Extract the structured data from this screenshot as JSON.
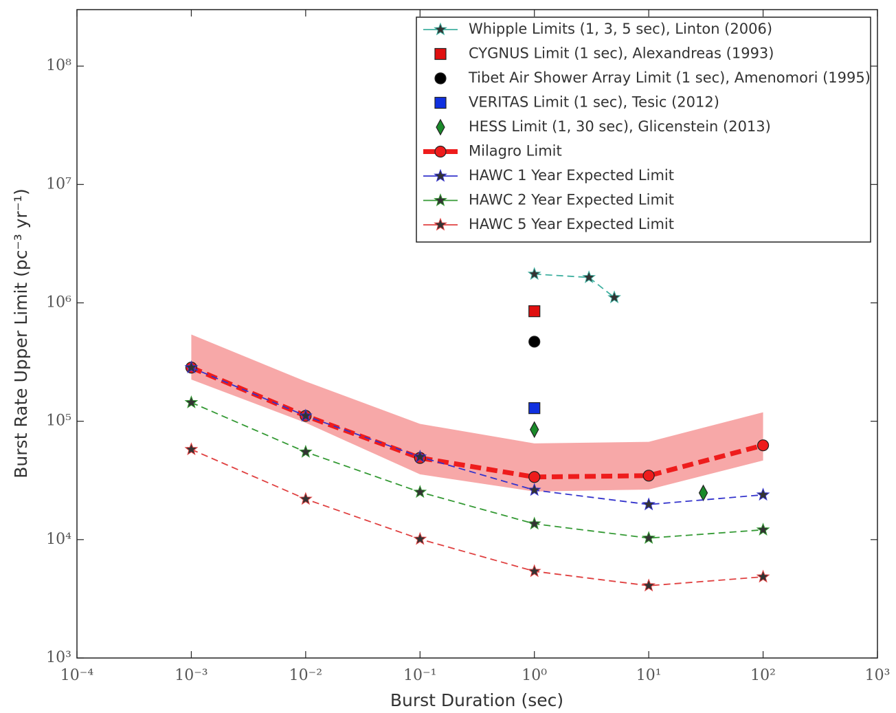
{
  "chart_data": {
    "type": "line",
    "xlabel": "Burst Duration (sec)",
    "ylabel": "Burst Rate Upper Limit (pc⁻³ yr⁻¹)",
    "xscale": "log",
    "yscale": "log",
    "xlim": [
      0.0001,
      1000
    ],
    "ylim": [
      1000,
      300000000
    ],
    "xticks": [
      {
        "value": 0.0001,
        "label": "10⁻⁴"
      },
      {
        "value": 0.001,
        "label": "10⁻³"
      },
      {
        "value": 0.01,
        "label": "10⁻²"
      },
      {
        "value": 0.1,
        "label": "10⁻¹"
      },
      {
        "value": 1,
        "label": "10⁰"
      },
      {
        "value": 10,
        "label": "10¹"
      },
      {
        "value": 100,
        "label": "10²"
      },
      {
        "value": 1000,
        "label": "10³"
      }
    ],
    "yticks": [
      {
        "value": 1000,
        "label": "10³"
      },
      {
        "value": 10000,
        "label": "10⁴"
      },
      {
        "value": 100000,
        "label": "10⁵"
      },
      {
        "value": 1000000,
        "label": "10⁶"
      },
      {
        "value": 10000000,
        "label": "10⁷"
      },
      {
        "value": 100000000,
        "label": "10⁸"
      }
    ],
    "legend": "upper right",
    "band": {
      "color": "#f7a8a8",
      "x": [
        0.001,
        0.01,
        0.1,
        1,
        10,
        100
      ],
      "upper": [
        540000,
        217000,
        95000,
        65000,
        67000,
        119000
      ],
      "lower": [
        225000,
        97000,
        35600,
        25500,
        26500,
        46600
      ]
    },
    "series": [
      {
        "name": "Whipple Limits (1, 3, 5 sec), Linton (2006)",
        "color": "#40b0a0",
        "marker": "star",
        "line": "dashed",
        "x": [
          1,
          3,
          5
        ],
        "values": [
          1750000,
          1640000,
          1110000
        ]
      },
      {
        "name": "CYGNUS Limit (1 sec), Alexandreas (1993)",
        "color": "#e01010",
        "marker": "square",
        "line": "none",
        "x": [
          1
        ],
        "values": [
          850000
        ]
      },
      {
        "name": "Tibet Air Shower Array Limit (1 sec), Amenomori (1995)",
        "color": "#000000",
        "marker": "circle",
        "line": "none",
        "x": [
          1
        ],
        "values": [
          470000
        ]
      },
      {
        "name": "VERITAS Limit (1 sec), Tesic (2012)",
        "color": "#1030e0",
        "marker": "square",
        "line": "none",
        "x": [
          1
        ],
        "values": [
          129000
        ]
      },
      {
        "name": "HESS Limit (1, 30 sec), Glicenstein (2013)",
        "color": "#1a8a2a",
        "marker": "diamond",
        "line": "none",
        "x": [
          1,
          30
        ],
        "values": [
          85000,
          24800
        ]
      },
      {
        "name": "Milagro Limit",
        "color": "#ee1c1c",
        "marker": "circle",
        "line": "thick",
        "x": [
          0.001,
          0.01,
          0.1,
          1,
          10,
          100
        ],
        "values": [
          284000,
          111000,
          49000,
          33800,
          34700,
          62600
        ]
      },
      {
        "name": "HAWC 1 Year Expected Limit",
        "color": "#3333cc",
        "marker": "star",
        "line": "dashed",
        "x": [
          0.001,
          0.01,
          0.1,
          1,
          10,
          100
        ],
        "values": [
          284000,
          111000,
          50000,
          26200,
          19800,
          23900
        ]
      },
      {
        "name": "HAWC 2 Year Expected Limit",
        "color": "#339933",
        "marker": "star",
        "line": "dashed",
        "x": [
          0.001,
          0.01,
          0.1,
          1,
          10,
          100
        ],
        "values": [
          144000,
          55000,
          25200,
          13600,
          10300,
          12100
        ]
      },
      {
        "name": "HAWC 5 Year Expected Limit",
        "color": "#e04040",
        "marker": "star",
        "line": "dashed",
        "x": [
          0.001,
          0.01,
          0.1,
          1,
          10,
          100
        ],
        "values": [
          57800,
          22000,
          10100,
          5400,
          4080,
          4850
        ]
      }
    ]
  }
}
